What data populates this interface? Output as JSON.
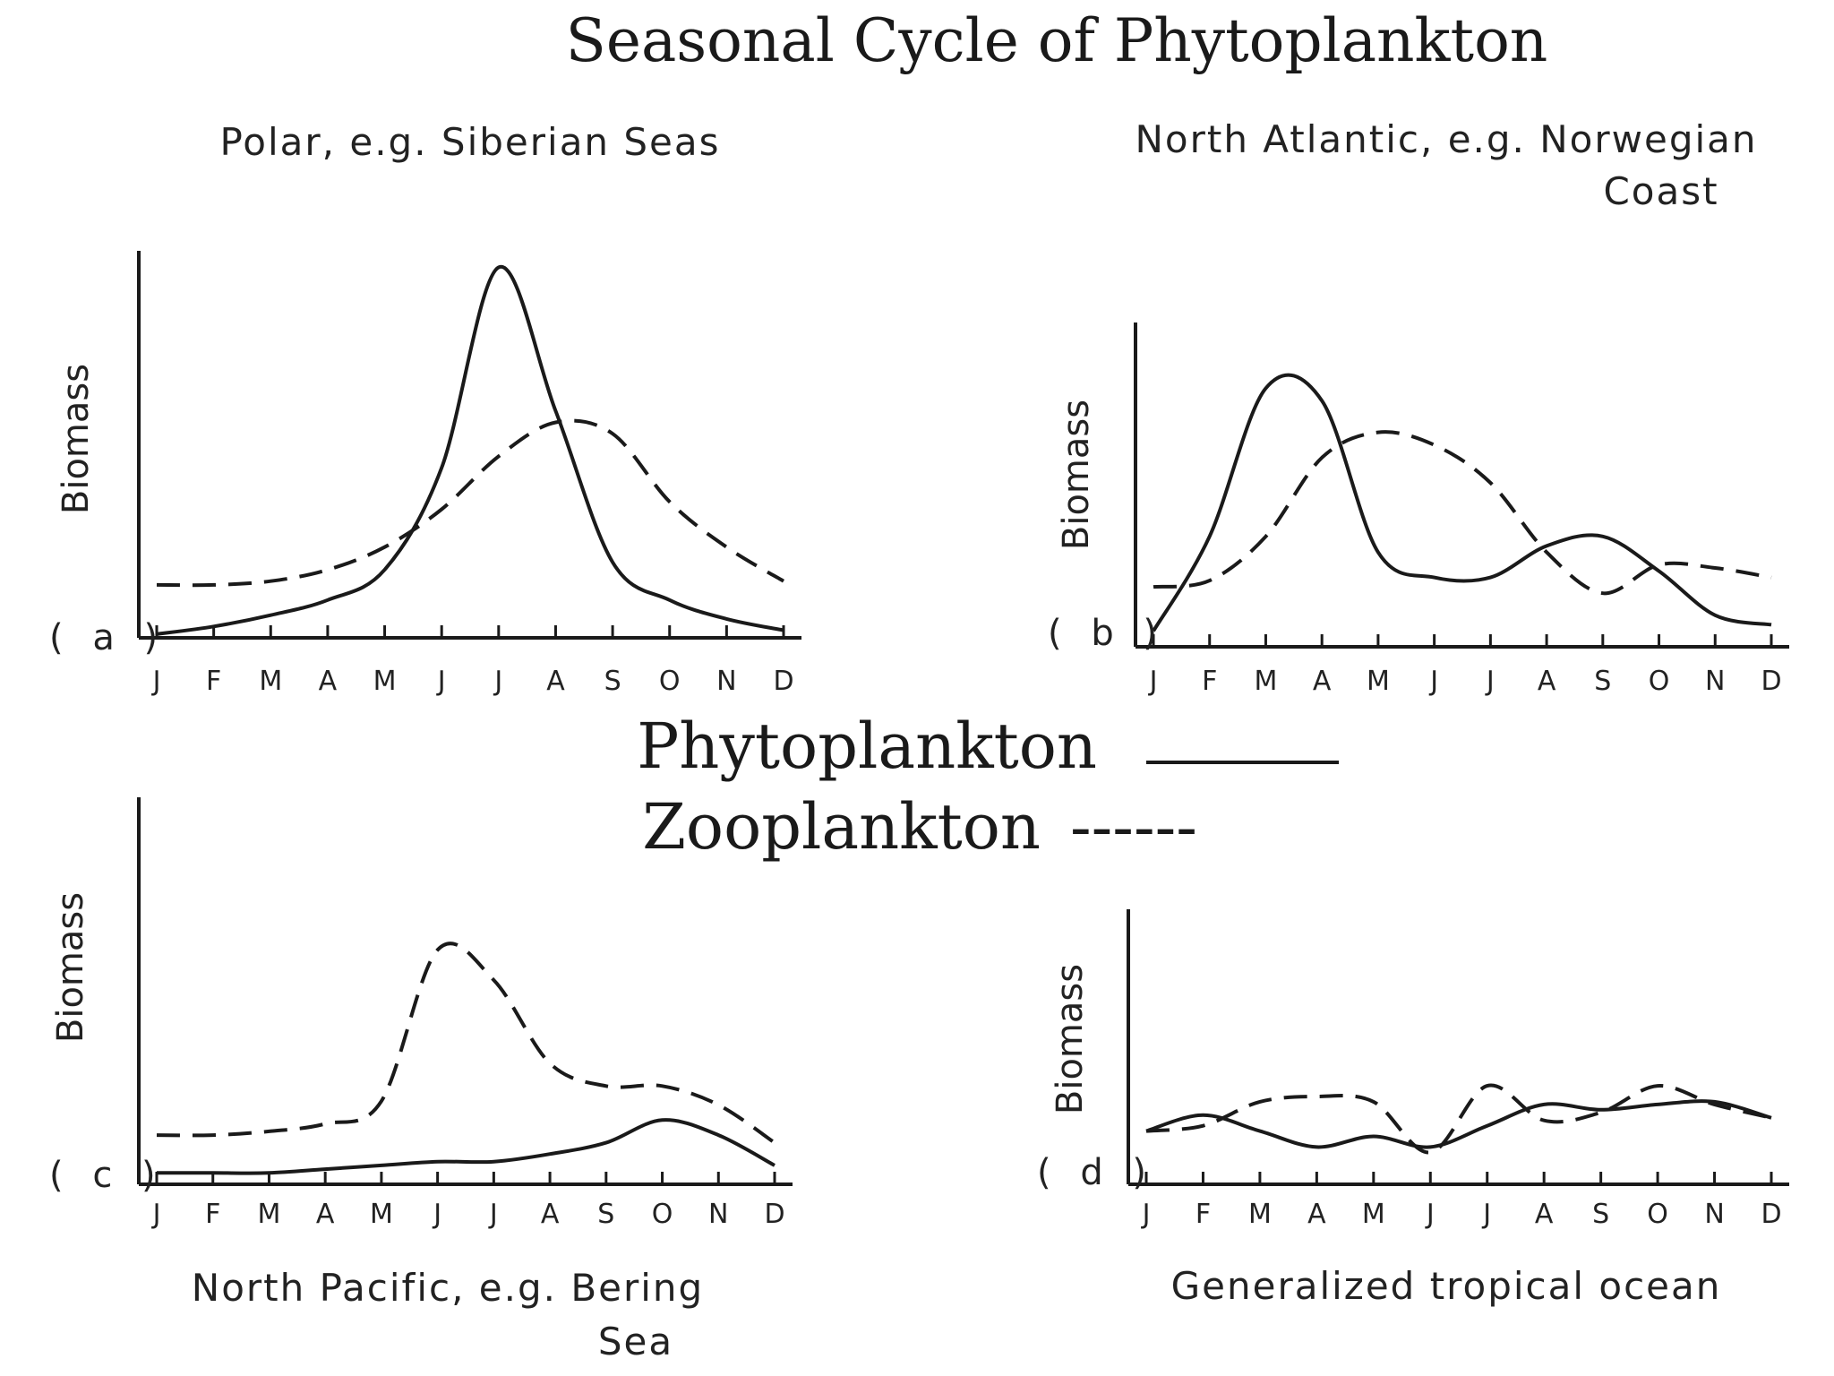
{
  "title": "Seasonal Cycle of Phytoplankton",
  "legend": {
    "phyto_label": "Phytoplankton",
    "zoo_label": "Zooplankton",
    "zoo_dash_text": "------"
  },
  "chart_data": [
    {
      "type": "line",
      "panel_label": "( a )",
      "subtitle": "Polar, e.g. Siberian Seas",
      "subtitle_line2": "",
      "ylabel": "Biomass",
      "xlabel": "",
      "categories": [
        "J",
        "F",
        "M",
        "A",
        "M",
        "J",
        "J",
        "A",
        "S",
        "O",
        "N",
        "D"
      ],
      "ylim": [
        0,
        100
      ],
      "series": [
        {
          "name": "Phytoplankton",
          "style": "solid",
          "values": [
            1,
            3,
            6,
            10,
            18,
            45,
            98,
            60,
            20,
            10,
            5,
            2
          ]
        },
        {
          "name": "Zooplankton",
          "style": "dashed",
          "values": [
            14,
            14,
            15,
            18,
            24,
            34,
            48,
            57,
            54,
            36,
            24,
            15
          ]
        }
      ]
    },
    {
      "type": "line",
      "panel_label": "( b )",
      "subtitle": "North Atlantic, e.g. Norwegian",
      "subtitle_line2": "Coast",
      "ylabel": "Biomass",
      "xlabel": "",
      "categories": [
        "J",
        "F",
        "M",
        "A",
        "M",
        "J",
        "J",
        "A",
        "S",
        "O",
        "N",
        "D"
      ],
      "ylim": [
        0,
        100
      ],
      "series": [
        {
          "name": "Phytoplankton",
          "style": "solid",
          "values": [
            5,
            35,
            82,
            78,
            30,
            22,
            22,
            32,
            35,
            24,
            10,
            7
          ]
        },
        {
          "name": "Zooplankton",
          "style": "dashed",
          "values": [
            19,
            21,
            35,
            60,
            68,
            64,
            52,
            30,
            17,
            26,
            25,
            22
          ]
        }
      ]
    },
    {
      "type": "line",
      "panel_label": "( c )",
      "subtitle": "North Pacific, e.g. Bering",
      "subtitle_line2": "Sea",
      "ylabel": "Biomass",
      "xlabel": "",
      "categories": [
        "J",
        "F",
        "M",
        "A",
        "M",
        "J",
        "J",
        "A",
        "S",
        "O",
        "N",
        "D"
      ],
      "ylim": [
        0,
        100
      ],
      "series": [
        {
          "name": "Phytoplankton",
          "style": "solid",
          "values": [
            3,
            3,
            3,
            4,
            5,
            6,
            6,
            8,
            11,
            17,
            13,
            5
          ]
        },
        {
          "name": "Zooplankton",
          "style": "dashed",
          "values": [
            13,
            13,
            14,
            16,
            22,
            62,
            54,
            32,
            26,
            26,
            21,
            11
          ]
        }
      ]
    },
    {
      "type": "line",
      "panel_label": "( d )",
      "subtitle": "Generalized tropical ocean",
      "subtitle_line2": "",
      "ylabel": "Biomass",
      "xlabel": "",
      "categories": [
        "J",
        "F",
        "M",
        "A",
        "M",
        "J",
        "J",
        "A",
        "S",
        "O",
        "N",
        "D"
      ],
      "ylim": [
        0,
        100
      ],
      "series": [
        {
          "name": "Phytoplankton",
          "style": "solid",
          "values": [
            20,
            26,
            20,
            14,
            18,
            14,
            22,
            30,
            28,
            30,
            31,
            25
          ]
        },
        {
          "name": "Zooplankton",
          "style": "dashed",
          "values": [
            20,
            22,
            31,
            33,
            31,
            12,
            37,
            24,
            27,
            37,
            30,
            25
          ]
        }
      ]
    }
  ]
}
